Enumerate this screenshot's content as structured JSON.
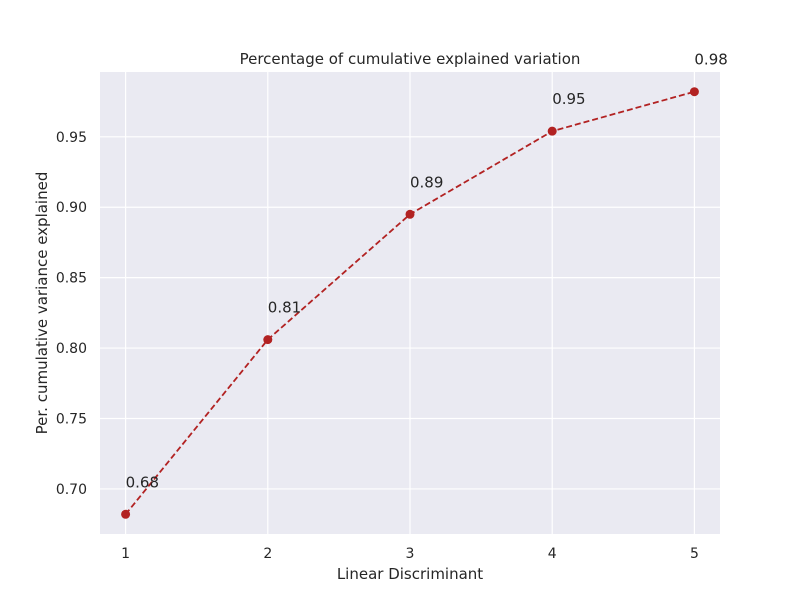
{
  "chart_data": {
    "type": "line",
    "title": "Percentage of cumulative explained variation",
    "xlabel": "Linear Discriminant",
    "ylabel": "Per. cumulative variance explained",
    "x": [
      1,
      2,
      3,
      4,
      5
    ],
    "x_tick_labels": [
      "1",
      "2",
      "3",
      "4",
      "5"
    ],
    "xlim": [
      0.82,
      5.18
    ],
    "ylim": [
      0.668,
      0.996
    ],
    "y_ticks": [
      0.7,
      0.75,
      0.8,
      0.85,
      0.9,
      0.95
    ],
    "y_tick_labels": [
      "0.70",
      "0.75",
      "0.80",
      "0.85",
      "0.90",
      "0.95"
    ],
    "series": [
      {
        "values": [
          0.682,
          0.806,
          0.895,
          0.954,
          0.982
        ],
        "data_labels": [
          "0.68",
          "0.81",
          "0.89",
          "0.95",
          "0.98"
        ],
        "color": "#b22222",
        "line_style": "dashed",
        "marker": "circle"
      }
    ],
    "grid": true,
    "background_color": "#eaeaf2",
    "grid_color": "#ffffff",
    "legend": "none"
  }
}
